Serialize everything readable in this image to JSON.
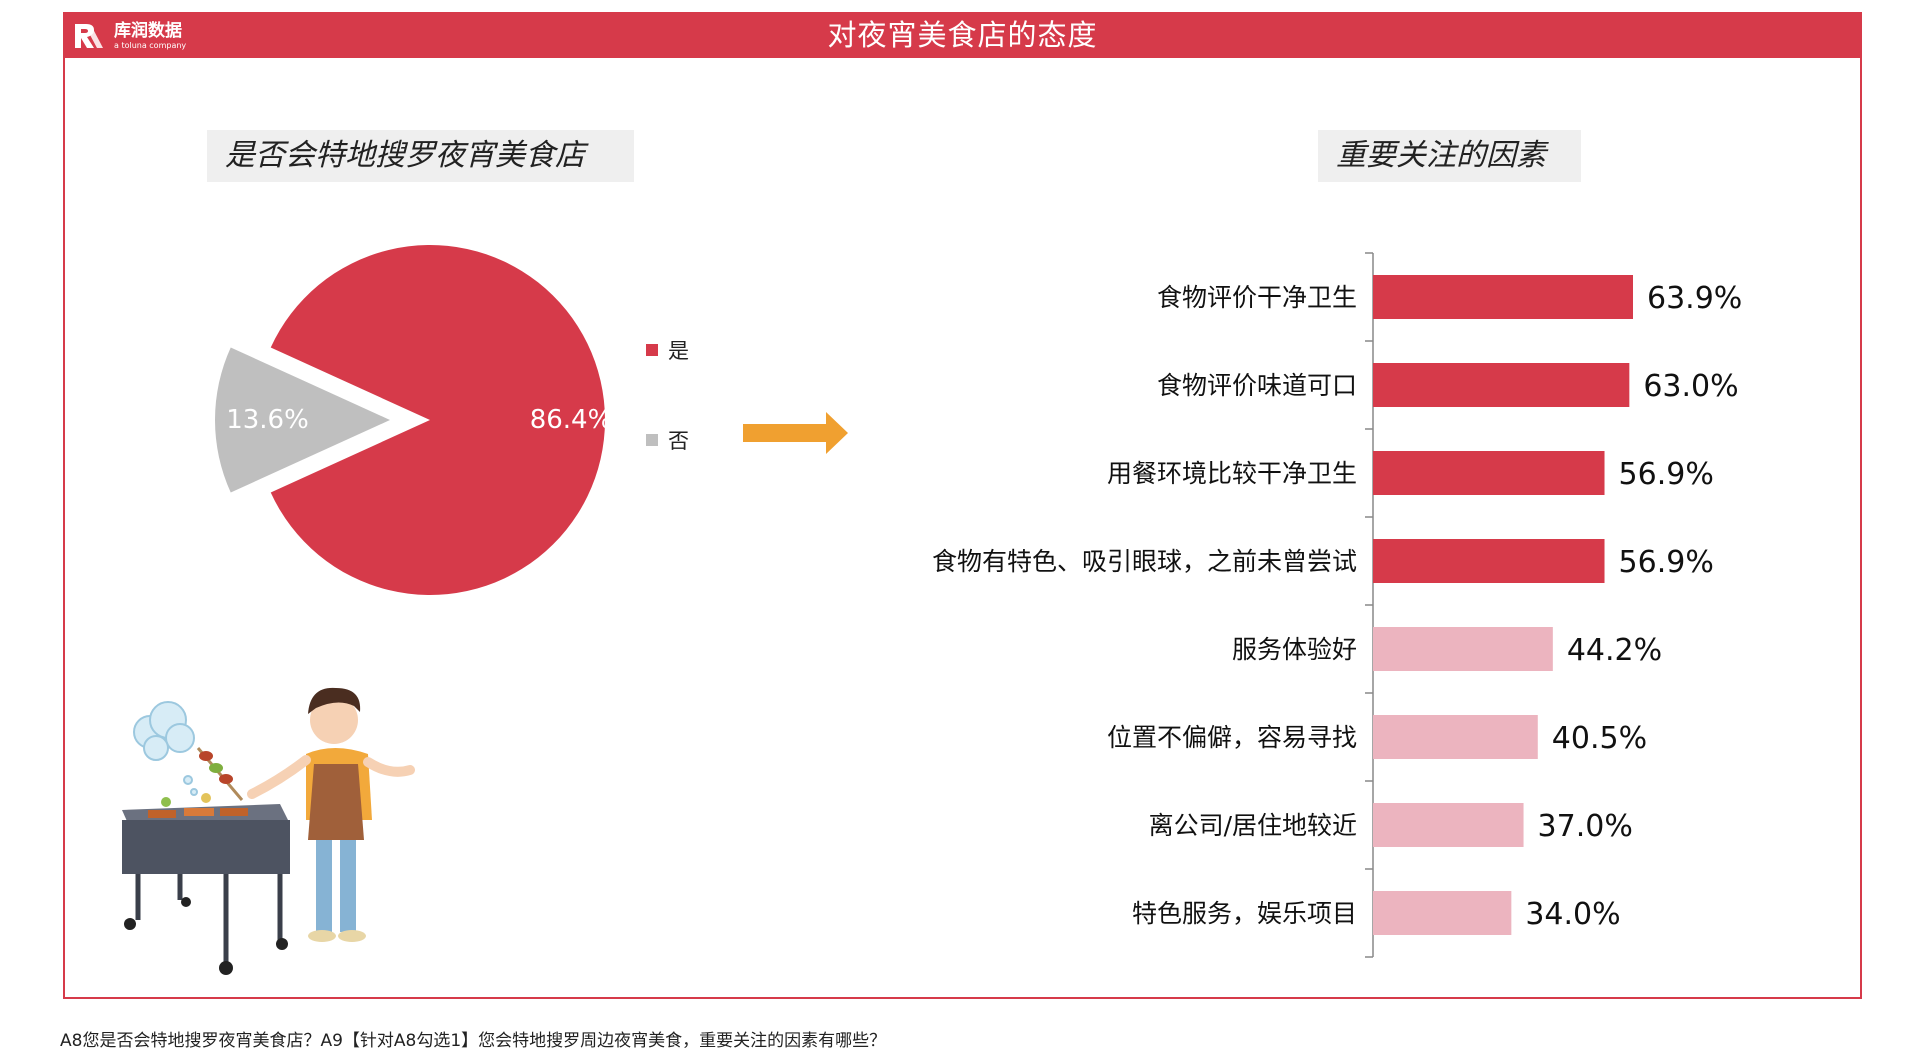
{
  "header": {
    "title": "对夜宵美食店的态度",
    "logo_name": "库润数据",
    "logo_sub": "a toluna company"
  },
  "left_panel": {
    "label": "是否会特地搜罗夜宵美食店"
  },
  "right_panel": {
    "label": "重要关注的因素"
  },
  "colors": {
    "accent": "#d63a4a",
    "pink": "#ecb4bf",
    "gray": "#bfbfbf",
    "arrow": "#f0a030"
  },
  "chart_data": [
    {
      "type": "pie",
      "labels": [
        "是",
        "否"
      ],
      "values": [
        86.4,
        13.6
      ],
      "value_labels": [
        "86.4%",
        "13.6%"
      ],
      "colors": [
        "#d63a4a",
        "#bfbfbf"
      ],
      "legend": "right"
    },
    {
      "type": "bar",
      "orientation": "horizontal",
      "categories": [
        "食物评价干净卫生",
        "食物评价味道可口",
        "用餐环境比较干净卫生",
        "食物有特色、吸引眼球，之前未曾尝试",
        "服务体验好",
        "位置不偏僻，容易寻找",
        "离公司/居住地较近",
        "特色服务，娱乐项目"
      ],
      "values": [
        63.9,
        63.0,
        56.9,
        56.9,
        44.2,
        40.5,
        37.0,
        34.0
      ],
      "value_labels": [
        "63.9%",
        "63.0%",
        "56.9%",
        "56.9%",
        "44.2%",
        "40.5%",
        "37.0%",
        "34.0%"
      ],
      "colors": [
        "#d63a4a",
        "#d63a4a",
        "#d63a4a",
        "#d63a4a",
        "#ecb4bf",
        "#ecb4bf",
        "#ecb4bf",
        "#ecb4bf"
      ]
    }
  ],
  "footnote": "A8您是否会特地搜罗夜宵美食店？A9【针对A8勾选1】您会特地搜罗周边夜宵美食，重要关注的因素有哪些？"
}
